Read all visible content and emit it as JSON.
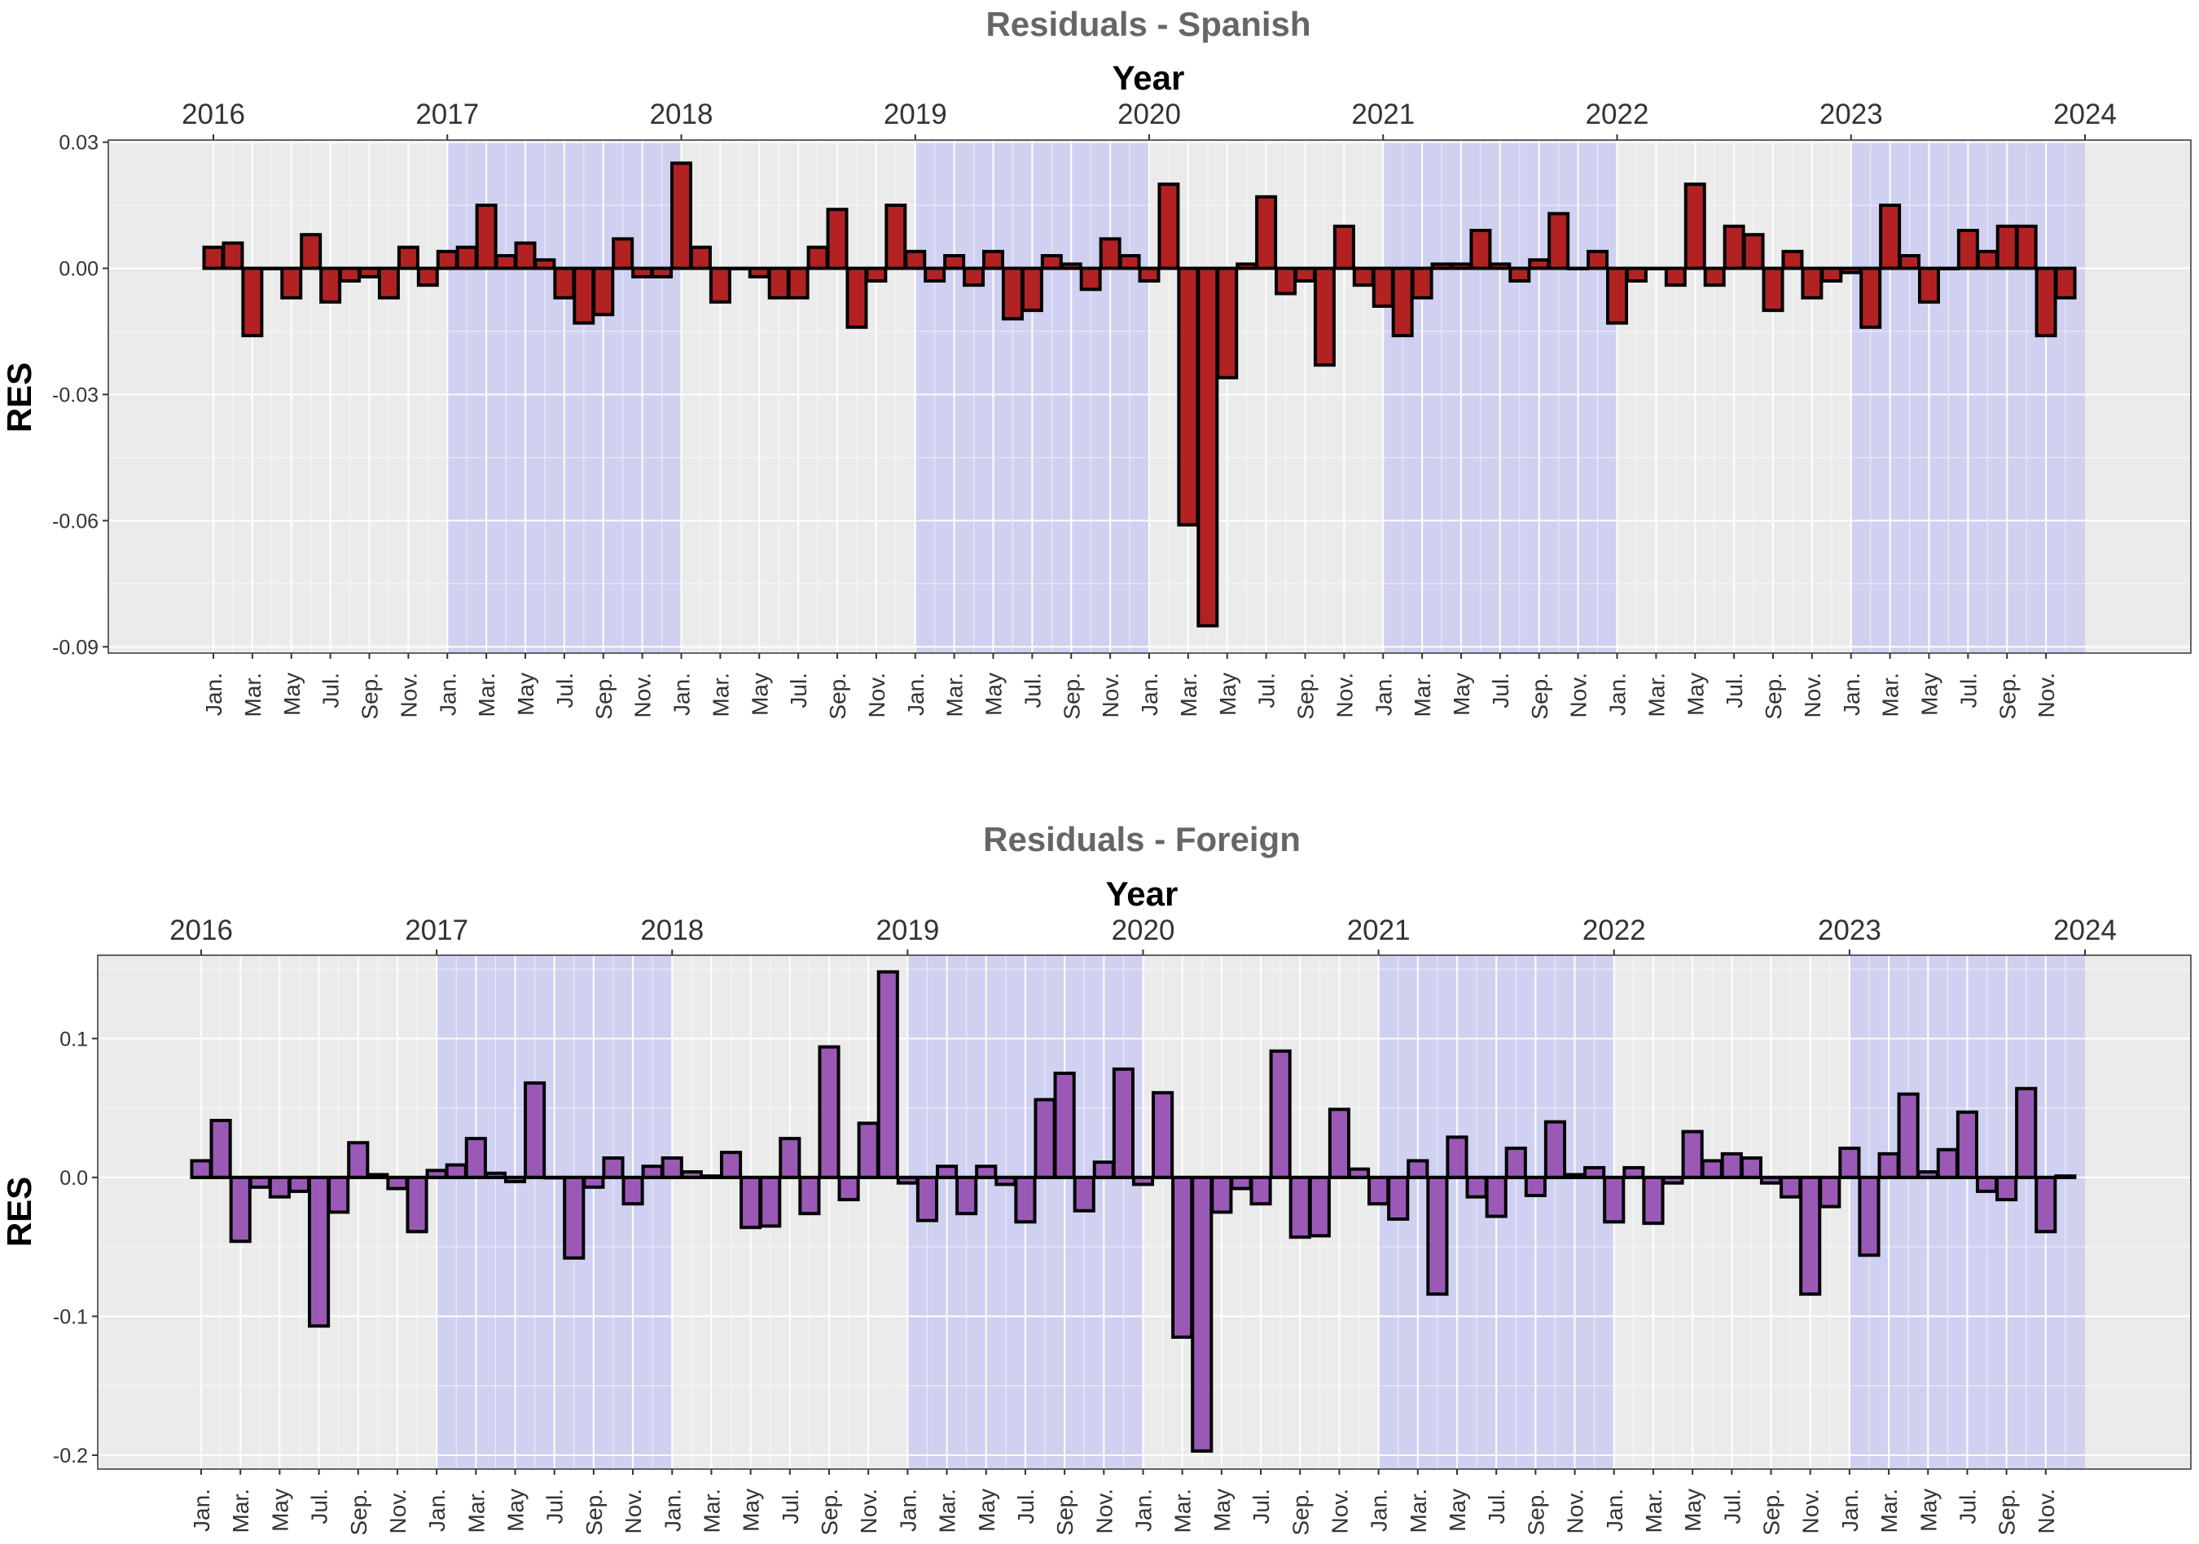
{
  "chart_data": [
    {
      "type": "bar",
      "title": "Residuals - Spanish",
      "xlabel": "Year",
      "ylabel": "RES",
      "ylim": [
        -0.0915,
        0.0305
      ],
      "yticks": [
        0.03,
        0.0,
        -0.03,
        -0.06,
        -0.09
      ],
      "ytick_labels": [
        "0.03",
        "0.00",
        "-0.03",
        "-0.06",
        "-0.09"
      ],
      "year_ticks": [
        "2016",
        "2017",
        "2018",
        "2019",
        "2020",
        "2021",
        "2022",
        "2023",
        "2024"
      ],
      "month_tick_labels": [
        "Jan.",
        "Mar.",
        "May",
        "Jul.",
        "Sep.",
        "Nov."
      ],
      "bar_color": "#b22222",
      "shade_color": "#d0d0f0",
      "panel_bg": "#ebebeb",
      "shaded_years": [
        "2017",
        "2019",
        "2021",
        "2023"
      ],
      "start": "2016-01",
      "values": [
        0.005,
        0.006,
        -0.016,
        0,
        -0.007,
        0.008,
        -0.008,
        -0.003,
        -0.002,
        -0.007,
        0.005,
        -0.004,
        0.004,
        0.005,
        0.015,
        0.003,
        0.006,
        0.002,
        -0.007,
        -0.013,
        -0.011,
        0.007,
        -0.002,
        -0.002,
        0.025,
        0.005,
        -0.008,
        0,
        -0.002,
        -0.007,
        -0.007,
        0.005,
        0.014,
        -0.014,
        -0.003,
        0.015,
        0.004,
        -0.003,
        0.003,
        -0.004,
        0.004,
        -0.012,
        -0.01,
        0.003,
        0.001,
        -0.005,
        0.007,
        0.003,
        -0.003,
        0.02,
        -0.061,
        -0.085,
        -0.026,
        0.001,
        0.017,
        -0.006,
        -0.003,
        -0.023,
        0.01,
        -0.004,
        -0.009,
        -0.016,
        -0.007,
        0.001,
        0.001,
        0.009,
        0.001,
        -0.003,
        0.002,
        0.013,
        0.0,
        0.004,
        -0.013,
        -0.003,
        0.0,
        -0.004,
        0.02,
        -0.004,
        0.01,
        0.008,
        -0.01,
        0.004,
        -0.007,
        -0.003,
        -0.001,
        -0.014,
        0.015,
        0.003,
        -0.008,
        0,
        0.009,
        0.004,
        0.01,
        0.01,
        -0.016,
        -0.007
      ]
    },
    {
      "type": "bar",
      "title": "Residuals - Foreign",
      "xlabel": "Year",
      "ylabel": "RES",
      "ylim": [
        -0.21,
        0.16
      ],
      "yticks": [
        0.1,
        0.0,
        -0.1,
        -0.2
      ],
      "ytick_labels": [
        "0.1",
        "0.0",
        "-0.1",
        "-0.2"
      ],
      "year_ticks": [
        "2016",
        "2017",
        "2018",
        "2019",
        "2020",
        "2021",
        "2022",
        "2023",
        "2024"
      ],
      "month_tick_labels": [
        "Jan.",
        "Mar.",
        "May",
        "Jul.",
        "Sep.",
        "Nov."
      ],
      "bar_color": "#9b59b6",
      "shade_color": "#d0d0f0",
      "panel_bg": "#ebebeb",
      "shaded_years": [
        "2017",
        "2019",
        "2021",
        "2023"
      ],
      "start": "2016-01",
      "values": [
        0.012,
        0.041,
        -0.046,
        -0.007,
        -0.014,
        -0.01,
        -0.107,
        -0.025,
        0.025,
        0.002,
        -0.008,
        -0.039,
        0.005,
        0.009,
        0.028,
        0.003,
        -0.003,
        0.068,
        0.0,
        -0.058,
        -0.007,
        0.014,
        -0.019,
        0.008,
        0.014,
        0.004,
        0.001,
        0.018,
        -0.036,
        -0.035,
        0.028,
        -0.026,
        0.094,
        -0.016,
        0.039,
        0.148,
        -0.004,
        -0.031,
        0.008,
        -0.026,
        0.008,
        -0.005,
        -0.032,
        0.056,
        0.075,
        -0.024,
        0.011,
        0.078,
        -0.005,
        0.061,
        -0.115,
        -0.197,
        -0.025,
        -0.008,
        -0.019,
        0.091,
        -0.043,
        -0.042,
        0.049,
        0.006,
        -0.019,
        -0.03,
        0.012,
        -0.084,
        0.029,
        -0.014,
        -0.028,
        0.021,
        -0.013,
        0.04,
        0.002,
        0.007,
        -0.032,
        0.007,
        -0.033,
        -0.004,
        0.033,
        0.012,
        0.017,
        0.014,
        -0.004,
        -0.014,
        -0.084,
        -0.021,
        0.021,
        -0.056,
        0.017,
        0.06,
        0.004,
        0.02,
        0.047,
        -0.01,
        -0.016,
        0.064,
        -0.039,
        0.001
      ]
    }
  ]
}
